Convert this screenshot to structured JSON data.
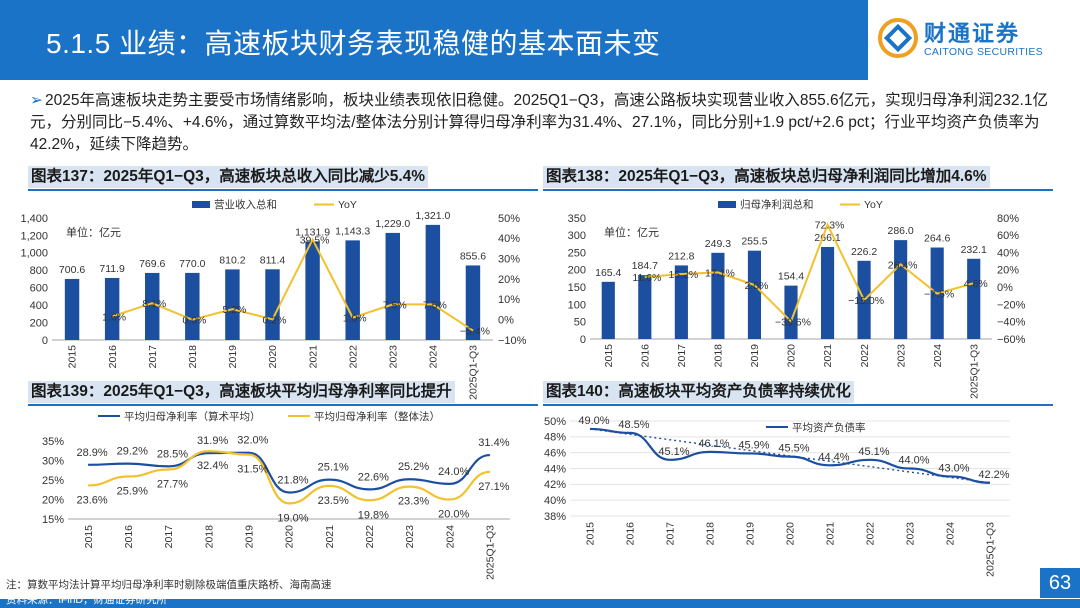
{
  "header": {
    "title": "5.1.5 业绩：高速板块财务表现稳健的基本面未变",
    "logo_cn": "财通证券",
    "logo_en": "CAITONG SECURITIES"
  },
  "summary": {
    "bullet": "➢",
    "text": "2025年高速板块走势主要受市场情绪影响，板块业绩表现依旧稳健。2025Q1−Q3，高速公路板块实现营业收入855.6亿元，实现归母净利润232.1亿元，分别同比−5.4%、+4.6%，通过算数平均法/整体法分别计算得归母净利率为31.4%、27.1%，同比分别+1.9 pct/+2.6 pct；行业平均资产负债率为42.2%，延续下降趋势。"
  },
  "footer": {
    "note": "注：算数平均法计算平均归母净利率时剔除极端值重庆路桥、海南高速",
    "source": "资料来源：iFinD，财通证券研究所",
    "page": "63"
  },
  "chart_data": [
    {
      "id": "c137",
      "title": "图表137：2025年Q1−Q3，高速板块总收入同比减少5.4%",
      "type": "bar+line",
      "unit": "单位：亿元",
      "categories": [
        "2015",
        "2016",
        "2017",
        "2018",
        "2019",
        "2020",
        "2021",
        "2022",
        "2023",
        "2024",
        "2025Q1-Q3"
      ],
      "bar_series": {
        "name": "营业收入总和",
        "values": [
          700.6,
          711.9,
          769.6,
          770.0,
          810.2,
          811.4,
          1131.9,
          1143.3,
          1229.0,
          1321.0,
          855.6
        ],
        "labels": [
          "700.6",
          "711.9",
          "769.6",
          "770.0",
          "810.2",
          "811.4",
          "1,131.9",
          "1,143.3",
          "1,229.0",
          "1,321.0",
          "855.6"
        ]
      },
      "line_series": {
        "name": "YoY",
        "values": [
          null,
          1.6,
          8.1,
          0.0,
          5.2,
          0.2,
          39.5,
          1.0,
          7.5,
          7.5,
          -5.4
        ],
        "labels": [
          "",
          "1.6%",
          "8.1%",
          "0.0%",
          "5.2%",
          "0.2%",
          "39.5%",
          "1.0%",
          "7.5%",
          "7.5%",
          "−5.4%"
        ]
      },
      "y_left": {
        "min": 0,
        "max": 1400,
        "ticks": [
          0,
          200,
          400,
          600,
          800,
          1000,
          1200,
          1400
        ],
        "tick_labels": [
          "0",
          "200",
          "400",
          "600",
          "800",
          "1,000",
          "1,200",
          "1,400"
        ]
      },
      "y_right": {
        "min": -10,
        "max": 50,
        "ticks": [
          -10,
          0,
          10,
          20,
          30,
          40,
          50
        ],
        "tick_labels": [
          "−10%",
          "0%",
          "10%",
          "20%",
          "30%",
          "40%",
          "50%"
        ]
      }
    },
    {
      "id": "c138",
      "title": "图表138：2025年Q1−Q3，高速板块总归母净利润同比增加4.6%",
      "type": "bar+line",
      "unit": "单位：亿元",
      "categories": [
        "2015",
        "2016",
        "2017",
        "2018",
        "2019",
        "2020",
        "2021",
        "2022",
        "2023",
        "2024",
        "2025Q1-Q3"
      ],
      "bar_series": {
        "name": "归母净利润总和",
        "values": [
          165.4,
          184.7,
          212.8,
          249.3,
          255.5,
          154.4,
          266.1,
          226.2,
          286.0,
          264.6,
          232.1
        ],
        "labels": [
          "165.4",
          "184.7",
          "212.8",
          "249.3",
          "255.5",
          "154.4",
          "266.1",
          "226.2",
          "286.0",
          "264.6",
          "232.1"
        ]
      },
      "line_series": {
        "name": "YoY",
        "values": [
          null,
          11.6,
          15.2,
          17.1,
          2.5,
          -39.6,
          72.3,
          -15.0,
          26.4,
          -7.5,
          4.6
        ],
        "labels": [
          "",
          "11.6%",
          "15.2%",
          "17.1%",
          "2.5%",
          "−39.6%",
          "72.3%",
          "−15.0%",
          "26.4%",
          "−7.5%",
          "4.6%"
        ]
      },
      "y_left": {
        "min": 0,
        "max": 350,
        "ticks": [
          0,
          50,
          100,
          150,
          200,
          250,
          300,
          350
        ],
        "tick_labels": [
          "0",
          "50",
          "100",
          "150",
          "200",
          "250",
          "300",
          "350"
        ]
      },
      "y_right": {
        "min": -60,
        "max": 80,
        "ticks": [
          -60,
          -40,
          -20,
          0,
          20,
          40,
          60,
          80
        ],
        "tick_labels": [
          "−60%",
          "−40%",
          "−20%",
          "0%",
          "20%",
          "40%",
          "60%",
          "80%"
        ]
      }
    },
    {
      "id": "c139",
      "title": "图表139：2025年Q1−Q3，高速板块平均归母净利率同比提升",
      "type": "line",
      "categories": [
        "2015",
        "2016",
        "2017",
        "2018",
        "2019",
        "2020",
        "2021",
        "2022",
        "2023",
        "2024",
        "2025Q1-Q3"
      ],
      "series": [
        {
          "name": "平均归母净利率（算术平均）",
          "values": [
            28.9,
            29.2,
            28.5,
            31.9,
            32.0,
            21.8,
            25.1,
            22.6,
            25.2,
            24.0,
            31.4
          ],
          "labels": [
            "28.9%",
            "29.2%",
            "28.5%",
            "31.9%",
            "32.0%",
            "21.8%",
            "25.1%",
            "22.6%",
            "25.2%",
            "24.0%",
            "31.4%"
          ]
        },
        {
          "name": "平均归母净利率（整体法）",
          "values": [
            23.6,
            25.9,
            27.7,
            32.4,
            31.5,
            19.0,
            23.5,
            19.8,
            23.3,
            20.0,
            27.1
          ],
          "labels": [
            "23.6%",
            "25.9%",
            "27.7%",
            "32.4%",
            "31.5%",
            "19.0%",
            "23.5%",
            "19.8%",
            "23.3%",
            "20.0%",
            "27.1%"
          ]
        }
      ],
      "y": {
        "min": 15,
        "max": 35,
        "ticks": [
          15,
          20,
          25,
          30,
          35
        ],
        "tick_labels": [
          "15%",
          "20%",
          "25%",
          "30%",
          "35%"
        ]
      }
    },
    {
      "id": "c140",
      "title": "图表140：高速板块平均资产负债率持续优化",
      "type": "line",
      "categories": [
        "2015",
        "2016",
        "2017",
        "2018",
        "2019",
        "2020",
        "2021",
        "2022",
        "2023",
        "2024",
        "2025Q1-Q3"
      ],
      "series": [
        {
          "name": "平均资产负债率",
          "values": [
            49.0,
            48.5,
            45.1,
            46.1,
            45.9,
            45.5,
            44.4,
            45.1,
            44.0,
            43.0,
            42.2
          ],
          "labels": [
            "49.0%",
            "48.5%",
            "45.1%",
            "46.1%",
            "45.9%",
            "45.5%",
            "44.4%",
            "45.1%",
            "44.0%",
            "43.0%",
            "42.2%"
          ]
        }
      ],
      "y": {
        "min": 38,
        "max": 50,
        "ticks": [
          38,
          40,
          42,
          44,
          46,
          48,
          50
        ],
        "tick_labels": [
          "38%",
          "40%",
          "42%",
          "44%",
          "46%",
          "48%",
          "50%"
        ]
      }
    }
  ],
  "colors": {
    "brand": "#1b73c8",
    "bar": "#1d4fa0",
    "line_yellow": "#f2c12e",
    "axis": "#a6a6a6",
    "text": "#333333"
  }
}
